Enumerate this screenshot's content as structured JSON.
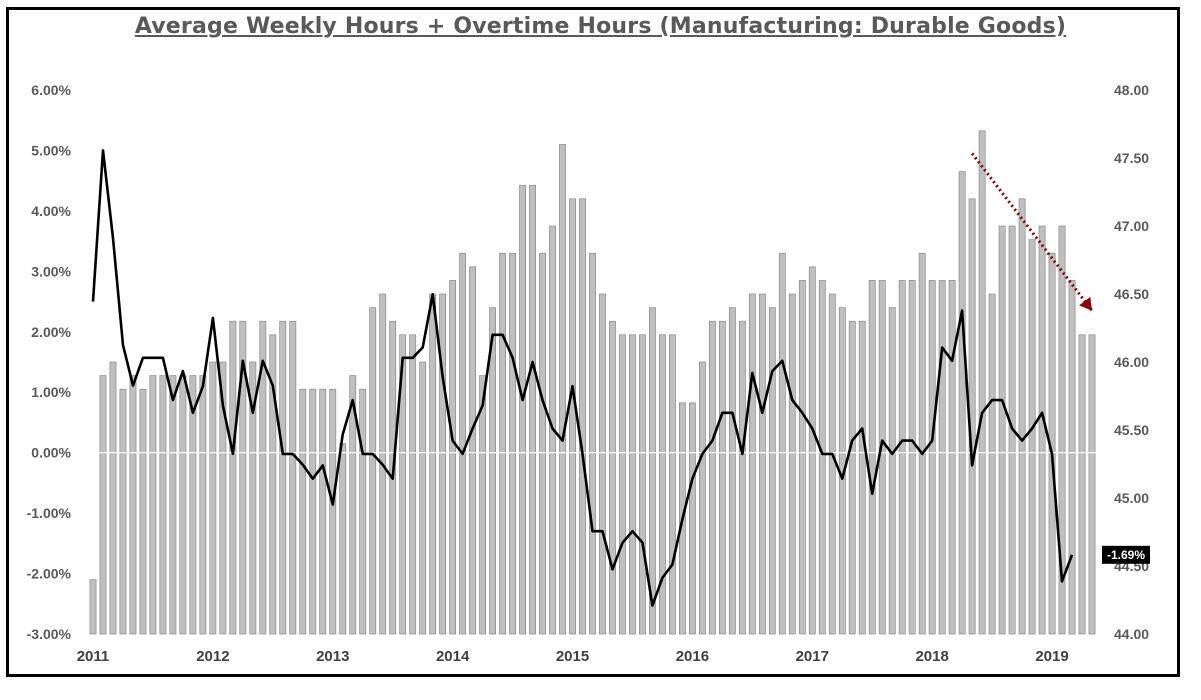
{
  "chart_data": {
    "type": "bar+line",
    "title": "Average Weekly Hours + Overtime Hours (Manufacturing: Durable Goods)",
    "x_ticks": [
      "2011",
      "2012",
      "2013",
      "2014",
      "2015",
      "2016",
      "2017",
      "2018",
      "2019"
    ],
    "left_axis": {
      "ticks": [
        "6.00%",
        "5.00%",
        "4.00%",
        "3.00%",
        "2.00%",
        "1.00%",
        "0.00%",
        "-1.00%",
        "-2.00%",
        "-3.00%"
      ],
      "ylim": [
        -3,
        6
      ]
    },
    "right_axis": {
      "ticks": [
        "48.00",
        "47.50",
        "47.00",
        "46.50",
        "46.00",
        "45.50",
        "45.00",
        "44.50",
        "44.00"
      ],
      "ylim": [
        44,
        48
      ]
    },
    "series": [
      {
        "kind": "bar",
        "axis": "right",
        "color": "#bfbfbf",
        "values": [
          44.4,
          45.9,
          46.0,
          45.8,
          45.9,
          45.8,
          45.9,
          45.9,
          45.9,
          45.9,
          45.9,
          45.9,
          46.0,
          46.0,
          46.3,
          46.3,
          46.0,
          46.3,
          46.2,
          46.3,
          46.3,
          45.8,
          45.8,
          45.8,
          45.8,
          45.4,
          45.9,
          45.8,
          46.4,
          46.5,
          46.3,
          46.2,
          46.2,
          46.0,
          46.5,
          46.5,
          46.6,
          46.8,
          46.7,
          45.9,
          46.4,
          46.8,
          46.8,
          47.3,
          47.3,
          46.8,
          47.0,
          47.6,
          47.2,
          47.2,
          46.8,
          46.5,
          46.3,
          46.2,
          46.2,
          46.2,
          46.4,
          46.2,
          46.2,
          45.7,
          45.7,
          46.0,
          46.3,
          46.3,
          46.4,
          46.3,
          46.5,
          46.5,
          46.4,
          46.8,
          46.5,
          46.6,
          46.7,
          46.6,
          46.5,
          46.4,
          46.3,
          46.3,
          46.6,
          46.6,
          46.4,
          46.6,
          46.6,
          46.8,
          46.6,
          46.6,
          46.6,
          47.4,
          47.2,
          47.7,
          46.5,
          47.0,
          47.0,
          47.2,
          46.9,
          47.0,
          46.8,
          47.0,
          46.6,
          46.2,
          46.2
        ]
      },
      {
        "kind": "line",
        "axis": "left",
        "color": "#000000",
        "values": [
          2.5,
          5.0,
          3.55,
          1.78,
          1.11,
          1.57,
          1.57,
          1.57,
          0.87,
          1.35,
          0.66,
          1.1,
          2.23,
          0.78,
          -0.02,
          1.52,
          0.66,
          1.52,
          1.11,
          -0.02,
          -0.02,
          -0.2,
          -0.43,
          -0.21,
          -0.86,
          0.3,
          0.87,
          -0.02,
          -0.02,
          -0.2,
          -0.43,
          1.57,
          1.57,
          1.74,
          2.62,
          1.26,
          0.2,
          -0.02,
          0.4,
          0.78,
          1.95,
          1.95,
          1.57,
          0.87,
          1.5,
          0.87,
          0.4,
          0.2,
          1.1,
          -0.02,
          -1.3,
          -1.3,
          -1.93,
          -1.49,
          -1.3,
          -1.49,
          -2.53,
          -2.07,
          -1.85,
          -1.1,
          -0.43,
          -0.02,
          0.2,
          0.66,
          0.66,
          -0.02,
          1.32,
          0.66,
          1.35,
          1.52,
          0.87,
          0.66,
          0.4,
          -0.02,
          -0.02,
          -0.43,
          0.2,
          0.4,
          -0.68,
          0.2,
          -0.02,
          0.2,
          0.2,
          -0.02,
          0.2,
          1.74,
          1.52,
          2.35,
          -0.21,
          0.66,
          0.87,
          0.87,
          0.4,
          0.2,
          0.4,
          0.66,
          -0.02,
          -2.13,
          -1.69
        ]
      }
    ],
    "trend_arrow": {
      "color": "#8b0000",
      "style": "dotted",
      "from": {
        "x_index": 88,
        "left_value": 4.95
      },
      "to": {
        "x_index": 100,
        "left_value": 2.35
      }
    },
    "last_value_label": "-1.69%",
    "zero_line": true
  }
}
